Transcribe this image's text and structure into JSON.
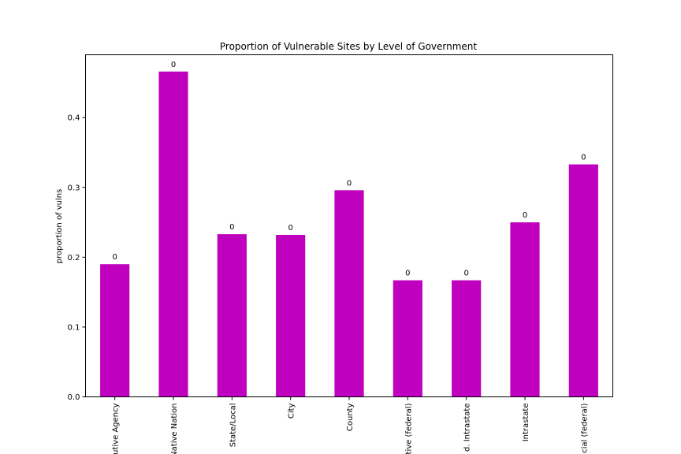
{
  "chart_data": {
    "type": "bar",
    "title": "Proportion of Vulnerable Sites by Level of Government",
    "xlabel": "",
    "ylabel": "proportion of vulns",
    "categories": [
      "utive Agency",
      "Native Nation",
      "State/Local",
      "City",
      "County",
      "tive (federal)",
      "d. Intrastate",
      "Intrastate",
      "cial (federal)"
    ],
    "values": [
      0.19,
      0.466,
      0.233,
      0.232,
      0.296,
      0.167,
      0.167,
      0.25,
      0.333
    ],
    "bar_labels": [
      "0",
      "0",
      "0",
      "0",
      "0",
      "0",
      "0",
      "0",
      "0"
    ],
    "ylim": [
      0,
      0.49
    ],
    "yticks": [
      0.0,
      0.1,
      0.2,
      0.3,
      0.4
    ],
    "ytick_labels": [
      "0.0",
      "0.1",
      "0.2",
      "0.3",
      "0.4"
    ],
    "bar_color": "#bf00bf",
    "grid": false,
    "legend": "none"
  }
}
